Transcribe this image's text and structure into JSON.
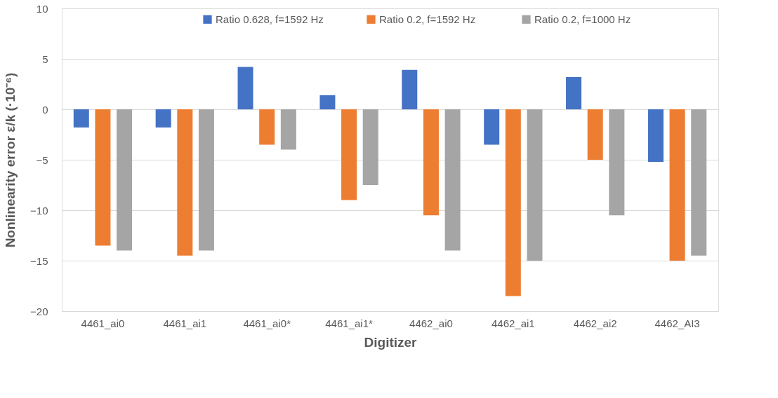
{
  "chart_data": {
    "type": "bar",
    "xlabel": "Digitizer",
    "ylabel": "Nonlinearity error ε/k (·10⁻⁶)",
    "categories": [
      "4461_ai0",
      "4461_ai1",
      "4461_ai0*",
      "4461_ai1*",
      "4462_ai0",
      "4462_ai1",
      "4462_ai2",
      "4462_AI3"
    ],
    "series": [
      {
        "name": "Ratio 0.628, f=1592 Hz",
        "color": "#4472c4",
        "values": [
          -1.8,
          -1.8,
          4.2,
          1.4,
          3.9,
          -3.5,
          3.2,
          -5.2
        ]
      },
      {
        "name": "Ratio 0.2,  f=1592 Hz",
        "color": "#ed7d31",
        "values": [
          -13.5,
          -14.5,
          -3.5,
          -9,
          -10.5,
          -18.5,
          -5,
          -15
        ]
      },
      {
        "name": "Ratio 0.2,  f=1000 Hz",
        "color": "#a5a5a5",
        "values": [
          -14,
          -14,
          -4,
          -7.5,
          -14,
          -15,
          -10.5,
          -14.5
        ]
      }
    ],
    "ylim": [
      -20,
      10
    ],
    "yticks": [
      -20,
      -15,
      -10,
      -5,
      0,
      5,
      10
    ],
    "grid": "y",
    "legend": "top"
  }
}
